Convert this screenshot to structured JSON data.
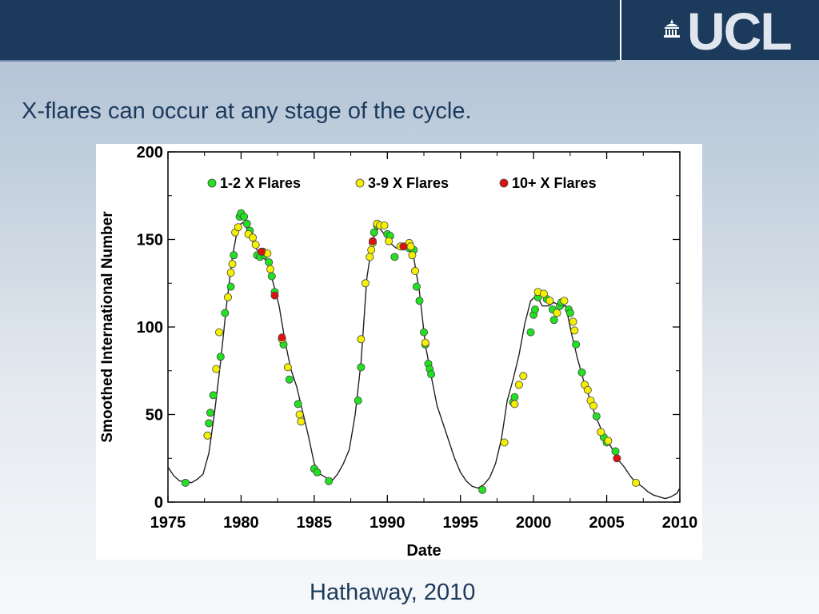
{
  "header": {
    "logo_text": "UCL"
  },
  "slide": {
    "title": "X-flares can occur at any stage of the cycle.",
    "caption": "Hathaway, 2010"
  },
  "chart_data": {
    "type": "line",
    "title": "",
    "xlabel": "Date",
    "ylabel": "Smoothed International Number",
    "xlim": [
      1975,
      2010
    ],
    "ylim": [
      0,
      200
    ],
    "xticks": [
      1975,
      1980,
      1985,
      1990,
      1995,
      2000,
      2005,
      2010
    ],
    "yticks": [
      0,
      50,
      100,
      150,
      200
    ],
    "grid": false,
    "legend_position": "top",
    "colors": {
      "line": "#222222",
      "green": "#22e022",
      "yellow": "#f5f000",
      "red": "#e01010"
    },
    "series": [
      {
        "name": "",
        "kind": "line",
        "x": [
          1975.0,
          1975.4,
          1975.8,
          1976.2,
          1976.6,
          1977.0,
          1977.4,
          1977.8,
          1978.2,
          1978.6,
          1979.0,
          1979.4,
          1979.8,
          1980.2,
          1980.6,
          1981.0,
          1981.4,
          1981.8,
          1982.2,
          1982.6,
          1983.0,
          1983.4,
          1983.8,
          1984.2,
          1984.6,
          1985.0,
          1985.4,
          1985.8,
          1986.2,
          1986.6,
          1987.0,
          1987.4,
          1987.8,
          1988.2,
          1988.6,
          1989.0,
          1989.4,
          1989.8,
          1990.2,
          1990.6,
          1991.0,
          1991.4,
          1991.8,
          1992.2,
          1992.6,
          1993.0,
          1993.4,
          1993.8,
          1994.2,
          1994.6,
          1995.0,
          1995.4,
          1995.8,
          1996.2,
          1996.6,
          1997.0,
          1997.4,
          1997.8,
          1998.2,
          1998.6,
          1999.0,
          1999.4,
          1999.8,
          2000.2,
          2000.6,
          2001.0,
          2001.4,
          2001.8,
          2002.2,
          2002.6,
          2003.0,
          2003.4,
          2003.8,
          2004.2,
          2004.6,
          2005.0,
          2005.4,
          2005.8,
          2006.2,
          2006.6,
          2007.0,
          2007.4,
          2007.8,
          2008.2,
          2008.6,
          2009.0,
          2009.4,
          2009.8,
          2010.0
        ],
        "y": [
          20,
          15,
          12,
          12,
          11,
          13,
          16,
          28,
          52,
          80,
          112,
          140,
          158,
          160,
          152,
          145,
          141,
          137,
          125,
          112,
          92,
          76,
          66,
          52,
          38,
          22,
          16,
          14,
          12,
          16,
          22,
          30,
          50,
          80,
          128,
          150,
          157,
          153,
          148,
          145,
          146,
          145,
          140,
          120,
          90,
          72,
          55,
          45,
          35,
          25,
          17,
          12,
          9,
          8,
          10,
          14,
          22,
          36,
          58,
          70,
          84,
          102,
          115,
          118,
          112,
          112,
          114,
          112,
          112,
          96,
          82,
          70,
          60,
          50,
          42,
          36,
          30,
          24,
          20,
          15,
          11,
          9,
          6,
          4,
          3,
          2,
          3,
          5,
          8
        ]
      },
      {
        "name": "1-2 X Flares",
        "kind": "points",
        "color": "#22e022",
        "points": [
          [
            1976.2,
            11
          ],
          [
            1977.8,
            45
          ],
          [
            1977.9,
            51
          ],
          [
            1978.1,
            61
          ],
          [
            1978.6,
            83
          ],
          [
            1978.9,
            108
          ],
          [
            1979.3,
            123
          ],
          [
            1979.5,
            141
          ],
          [
            1979.9,
            163
          ],
          [
            1980.0,
            165
          ],
          [
            1980.2,
            163
          ],
          [
            1980.4,
            159
          ],
          [
            1980.6,
            155
          ],
          [
            1981.1,
            141
          ],
          [
            1981.3,
            140
          ],
          [
            1981.6,
            141
          ],
          [
            1981.9,
            137
          ],
          [
            1982.1,
            129
          ],
          [
            1982.3,
            120
          ],
          [
            1982.9,
            90
          ],
          [
            1983.3,
            70
          ],
          [
            1983.9,
            56
          ],
          [
            1985.0,
            19
          ],
          [
            1985.2,
            17
          ],
          [
            1986.0,
            12
          ],
          [
            1988.0,
            58
          ],
          [
            1988.2,
            77
          ],
          [
            1989.1,
            154
          ],
          [
            1989.3,
            158
          ],
          [
            1990.0,
            153
          ],
          [
            1990.2,
            152
          ],
          [
            1990.5,
            140
          ],
          [
            1991.5,
            145
          ],
          [
            1991.8,
            144
          ],
          [
            1992.0,
            123
          ],
          [
            1992.2,
            115
          ],
          [
            1992.5,
            97
          ],
          [
            1992.6,
            90
          ],
          [
            1992.8,
            79
          ],
          [
            1992.9,
            76
          ],
          [
            1993.0,
            73
          ],
          [
            1996.5,
            7
          ],
          [
            1998.6,
            57
          ],
          [
            1998.7,
            60
          ],
          [
            1999.8,
            97
          ],
          [
            2000.0,
            107
          ],
          [
            2000.1,
            110
          ],
          [
            2000.3,
            117
          ],
          [
            2000.9,
            116
          ],
          [
            2001.3,
            110
          ],
          [
            2001.4,
            104
          ],
          [
            2001.8,
            112
          ],
          [
            2001.9,
            114
          ],
          [
            2002.4,
            110
          ],
          [
            2002.5,
            108
          ],
          [
            2002.9,
            90
          ],
          [
            2003.3,
            74
          ],
          [
            2004.3,
            49
          ],
          [
            2004.8,
            37
          ],
          [
            2005.0,
            34
          ],
          [
            2005.6,
            29
          ]
        ]
      },
      {
        "name": "3-9 X Flares",
        "kind": "points",
        "color": "#f5f000",
        "points": [
          [
            1977.7,
            38
          ],
          [
            1978.3,
            76
          ],
          [
            1978.5,
            97
          ],
          [
            1979.1,
            117
          ],
          [
            1979.3,
            131
          ],
          [
            1979.4,
            136
          ],
          [
            1979.6,
            154
          ],
          [
            1979.8,
            157
          ],
          [
            1980.5,
            153
          ],
          [
            1980.8,
            151
          ],
          [
            1981.0,
            147
          ],
          [
            1981.5,
            143
          ],
          [
            1981.8,
            142
          ],
          [
            1982.0,
            133
          ],
          [
            1982.8,
            93
          ],
          [
            1983.2,
            77
          ],
          [
            1984.0,
            50
          ],
          [
            1984.1,
            46
          ],
          [
            1988.2,
            93
          ],
          [
            1988.5,
            125
          ],
          [
            1988.8,
            140
          ],
          [
            1988.9,
            144
          ],
          [
            1989.0,
            148
          ],
          [
            1989.3,
            159
          ],
          [
            1989.5,
            158
          ],
          [
            1989.8,
            158
          ],
          [
            1990.1,
            149
          ],
          [
            1990.9,
            146
          ],
          [
            1991.5,
            148
          ],
          [
            1991.6,
            146
          ],
          [
            1991.7,
            141
          ],
          [
            1991.9,
            132
          ],
          [
            1992.6,
            91
          ],
          [
            1998.0,
            34
          ],
          [
            1998.7,
            56
          ],
          [
            1999.0,
            67
          ],
          [
            1999.3,
            72
          ],
          [
            2000.3,
            120
          ],
          [
            2000.7,
            119
          ],
          [
            2001.1,
            115
          ],
          [
            2001.6,
            108
          ],
          [
            2002.1,
            115
          ],
          [
            2002.7,
            103
          ],
          [
            2002.8,
            98
          ],
          [
            2003.5,
            67
          ],
          [
            2003.7,
            64
          ],
          [
            2003.9,
            58
          ],
          [
            2004.1,
            55
          ],
          [
            2004.6,
            40
          ],
          [
            2005.1,
            35
          ],
          [
            2007.0,
            11
          ]
        ]
      },
      {
        "name": "10+ X Flares",
        "kind": "points",
        "color": "#e01010",
        "points": [
          [
            1981.4,
            143
          ],
          [
            1982.3,
            118
          ],
          [
            1982.8,
            94
          ],
          [
            1989.0,
            149
          ],
          [
            1991.1,
            146
          ],
          [
            2005.7,
            25
          ]
        ]
      }
    ]
  }
}
